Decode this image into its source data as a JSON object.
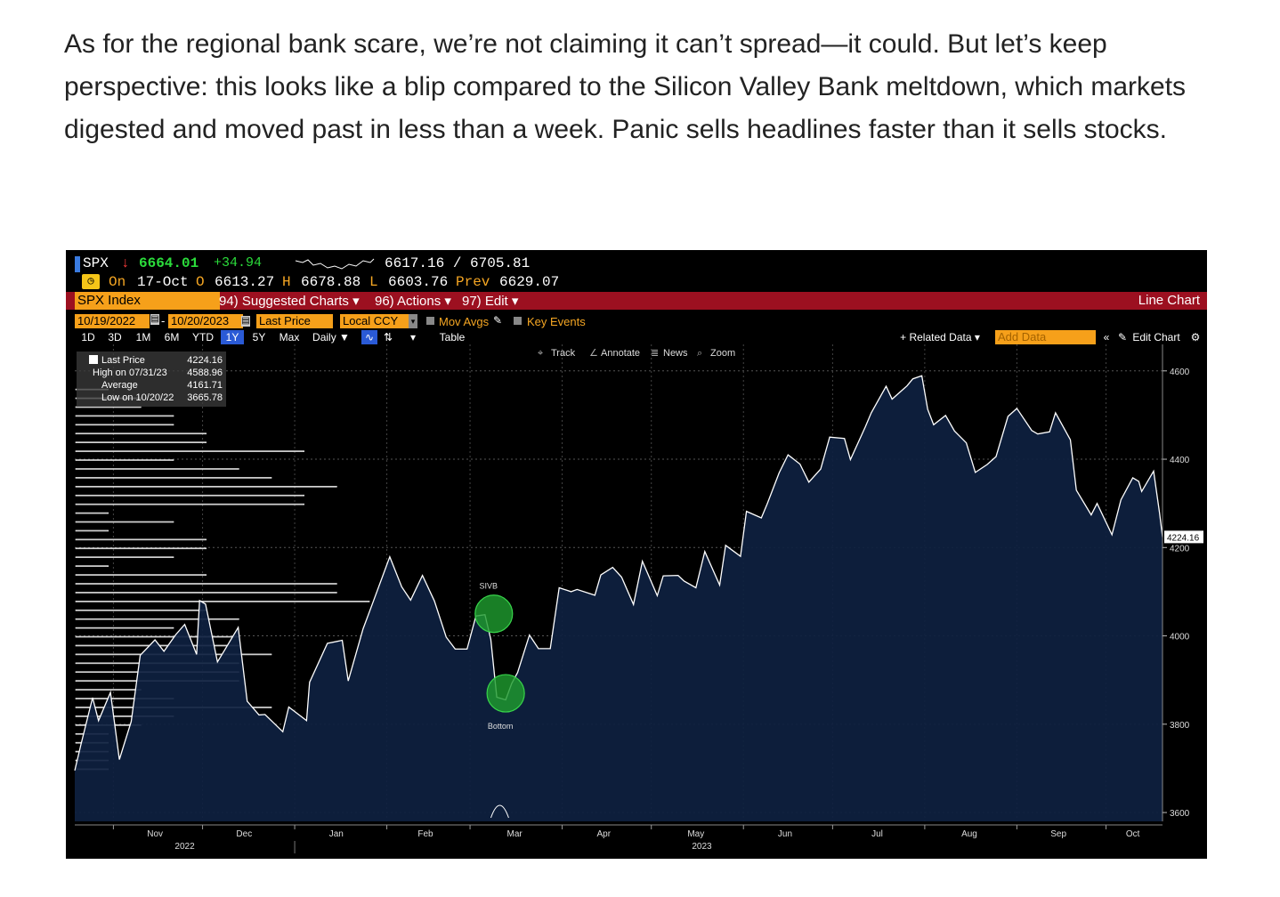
{
  "article": {
    "paragraph": "As for the regional bank scare, we’re not claiming it can’t spread—it could. But let’s keep perspective: this looks like a blip compared to the Silicon Valley Bank meltdown, which markets digested and moved past in less than a week. Panic sells headlines faster than it sells stocks."
  },
  "quote": {
    "ticker": "SPX",
    "arrow": "↓",
    "last": "6664.01",
    "change": "+34.94",
    "range": "6617.16 / 6705.81",
    "date_label": "On",
    "date": "17-Oct",
    "open_label": "O",
    "open": "6613.27",
    "high_label": "H",
    "high": "6678.88",
    "low_label": "L",
    "low": "6603.76",
    "prev_label": "Prev",
    "prev": "6629.07"
  },
  "menu": {
    "security": "SPX Index",
    "suggested": "94) Suggested Charts ▾",
    "actions": "96) Actions ▾",
    "edit": "97) Edit ▾",
    "chart_type": "Line Chart"
  },
  "controls": {
    "start_date": "10/19/2022",
    "end_date": "10/20/2023",
    "price_field": "Last Price",
    "currency": "Local CCY",
    "mov_avgs": "Mov Avgs",
    "key_events": "Key Events",
    "periods": [
      "1D",
      "3D",
      "1M",
      "6M",
      "YTD",
      "1Y",
      "5Y",
      "Max"
    ],
    "active_period": "1Y",
    "frequency": "Daily ▼",
    "table": "Table",
    "related_data": "+ Related Data ▾",
    "add_data": "Add Data",
    "edit_chart": "Edit Chart"
  },
  "chart_tools": {
    "track": "Track",
    "annotate": "Annotate",
    "news": "News",
    "zoom": "Zoom"
  },
  "legend": {
    "last_label": "Last Price",
    "last_value": "4224.16",
    "high_label": "High on 07/31/23",
    "high_value": "4588.96",
    "avg_label": "Average",
    "avg_value": "4161.71",
    "low_label": "Low on 10/20/22",
    "low_value": "3665.78"
  },
  "colors": {
    "accent_bar": "#9c1020",
    "orange": "#f6a01a",
    "line": "#ffffff",
    "area": "#0e2140",
    "marker": "#1e9b2e",
    "up": "#2bdc3b",
    "down": "#ff3b3b"
  },
  "chart_data": {
    "type": "area",
    "y_ticks": [
      3600,
      3800,
      4000,
      4200,
      4400,
      4600
    ],
    "ylim": [
      3580,
      4660
    ],
    "x_month_labels": [
      "Nov",
      "Dec",
      "Jan",
      "Feb",
      "Mar",
      "Apr",
      "May",
      "Jun",
      "Jul",
      "Aug",
      "Sep",
      "Oct"
    ],
    "x_year_labels": [
      "2022",
      "2023"
    ],
    "last_price_tag": "4224.16",
    "annotations": [
      {
        "label": "SIVB",
        "date": "2023-03-09",
        "value": 4050
      },
      {
        "label": "Bottom",
        "date": "2023-03-13",
        "value": 3870
      }
    ],
    "series": [
      {
        "points": [
          [
            "2022-10-19",
            3695
          ],
          [
            "2022-10-21",
            3752
          ],
          [
            "2022-10-25",
            3860
          ],
          [
            "2022-10-27",
            3808
          ],
          [
            "2022-10-31",
            3872
          ],
          [
            "2022-11-03",
            3720
          ],
          [
            "2022-11-07",
            3806
          ],
          [
            "2022-11-10",
            3956
          ],
          [
            "2022-11-15",
            3991
          ],
          [
            "2022-11-18",
            3965
          ],
          [
            "2022-11-22",
            4003
          ],
          [
            "2022-11-25",
            4026
          ],
          [
            "2022-11-29",
            3958
          ],
          [
            "2022-11-30",
            4080
          ],
          [
            "2022-12-02",
            4072
          ],
          [
            "2022-12-06",
            3941
          ],
          [
            "2022-12-08",
            3963
          ],
          [
            "2022-12-13",
            4019
          ],
          [
            "2022-12-16",
            3852
          ],
          [
            "2022-12-20",
            3821
          ],
          [
            "2022-12-22",
            3822
          ],
          [
            "2022-12-28",
            3783
          ],
          [
            "2022-12-30",
            3839
          ],
          [
            "2023-01-05",
            3808
          ],
          [
            "2023-01-06",
            3895
          ],
          [
            "2023-01-12",
            3983
          ],
          [
            "2023-01-17",
            3990
          ],
          [
            "2023-01-19",
            3898
          ],
          [
            "2023-01-24",
            4016
          ],
          [
            "2023-01-27",
            4070
          ],
          [
            "2023-02-02",
            4179
          ],
          [
            "2023-02-06",
            4111
          ],
          [
            "2023-02-09",
            4081
          ],
          [
            "2023-02-13",
            4137
          ],
          [
            "2023-02-17",
            4079
          ],
          [
            "2023-02-21",
            3997
          ],
          [
            "2023-02-24",
            3970
          ],
          [
            "2023-02-28",
            3970
          ],
          [
            "2023-03-03",
            4045
          ],
          [
            "2023-03-06",
            4048
          ],
          [
            "2023-03-08",
            3992
          ],
          [
            "2023-03-10",
            3861
          ],
          [
            "2023-03-13",
            3855
          ],
          [
            "2023-03-15",
            3892
          ],
          [
            "2023-03-17",
            3917
          ],
          [
            "2023-03-21",
            4002
          ],
          [
            "2023-03-24",
            3971
          ],
          [
            "2023-03-28",
            3971
          ],
          [
            "2023-03-31",
            4109
          ],
          [
            "2023-04-04",
            4100
          ],
          [
            "2023-04-06",
            4105
          ],
          [
            "2023-04-12",
            4092
          ],
          [
            "2023-04-14",
            4138
          ],
          [
            "2023-04-18",
            4155
          ],
          [
            "2023-04-21",
            4133
          ],
          [
            "2023-04-25",
            4071
          ],
          [
            "2023-04-28",
            4169
          ],
          [
            "2023-05-03",
            4091
          ],
          [
            "2023-05-05",
            4136
          ],
          [
            "2023-05-10",
            4137
          ],
          [
            "2023-05-12",
            4124
          ],
          [
            "2023-05-16",
            4109
          ],
          [
            "2023-05-19",
            4191
          ],
          [
            "2023-05-24",
            4115
          ],
          [
            "2023-05-26",
            4205
          ],
          [
            "2023-05-31",
            4180
          ],
          [
            "2023-06-02",
            4282
          ],
          [
            "2023-06-07",
            4267
          ],
          [
            "2023-06-09",
            4299
          ],
          [
            "2023-06-13",
            4369
          ],
          [
            "2023-06-16",
            4410
          ],
          [
            "2023-06-20",
            4389
          ],
          [
            "2023-06-23",
            4348
          ],
          [
            "2023-06-27",
            4378
          ],
          [
            "2023-06-30",
            4450
          ],
          [
            "2023-07-05",
            4447
          ],
          [
            "2023-07-07",
            4399
          ],
          [
            "2023-07-12",
            4473
          ],
          [
            "2023-07-14",
            4505
          ],
          [
            "2023-07-19",
            4565
          ],
          [
            "2023-07-21",
            4536
          ],
          [
            "2023-07-26",
            4566
          ],
          [
            "2023-07-28",
            4582
          ],
          [
            "2023-07-31",
            4589
          ],
          [
            "2023-08-02",
            4513
          ],
          [
            "2023-08-04",
            4478
          ],
          [
            "2023-08-08",
            4499
          ],
          [
            "2023-08-11",
            4464
          ],
          [
            "2023-08-15",
            4437
          ],
          [
            "2023-08-18",
            4370
          ],
          [
            "2023-08-22",
            4388
          ],
          [
            "2023-08-25",
            4406
          ],
          [
            "2023-08-29",
            4497
          ],
          [
            "2023-09-01",
            4515
          ],
          [
            "2023-09-06",
            4465
          ],
          [
            "2023-09-08",
            4457
          ],
          [
            "2023-09-12",
            4462
          ],
          [
            "2023-09-14",
            4505
          ],
          [
            "2023-09-19",
            4444
          ],
          [
            "2023-09-21",
            4330
          ],
          [
            "2023-09-26",
            4274
          ],
          [
            "2023-09-28",
            4300
          ],
          [
            "2023-10-03",
            4229
          ],
          [
            "2023-10-06",
            4308
          ],
          [
            "2023-10-10",
            4358
          ],
          [
            "2023-10-12",
            4350
          ],
          [
            "2023-10-13",
            4327
          ],
          [
            "2023-10-17",
            4373
          ],
          [
            "2023-10-19",
            4278
          ],
          [
            "2023-10-20",
            4224
          ]
        ]
      }
    ],
    "volume_at_price": {
      "levels": [
        4650,
        4630,
        4610,
        4590,
        4570,
        4550,
        4530,
        4510,
        4490,
        4470,
        4450,
        4430,
        4410,
        4390,
        4370,
        4350,
        4330,
        4310,
        4290,
        4270,
        4250,
        4230,
        4210,
        4190,
        4170,
        4150,
        4130,
        4110,
        4090,
        4070,
        4050,
        4030,
        4010,
        3990,
        3970,
        3950,
        3930,
        3910,
        3890,
        3870,
        3850,
        3830,
        3810,
        3790,
        3770,
        3750,
        3730,
        3710,
        3690,
        3670
      ],
      "counts": [
        0,
        0,
        0,
        0,
        1,
        2,
        2,
        3,
        3,
        4,
        4,
        7,
        3,
        5,
        6,
        8,
        7,
        7,
        1,
        3,
        1,
        4,
        4,
        3,
        1,
        4,
        8,
        8,
        9,
        4,
        5,
        3,
        5,
        5,
        6,
        5,
        5,
        5,
        2,
        3,
        6,
        3,
        2,
        1,
        1,
        1,
        1,
        1,
        0,
        0
      ]
    }
  }
}
